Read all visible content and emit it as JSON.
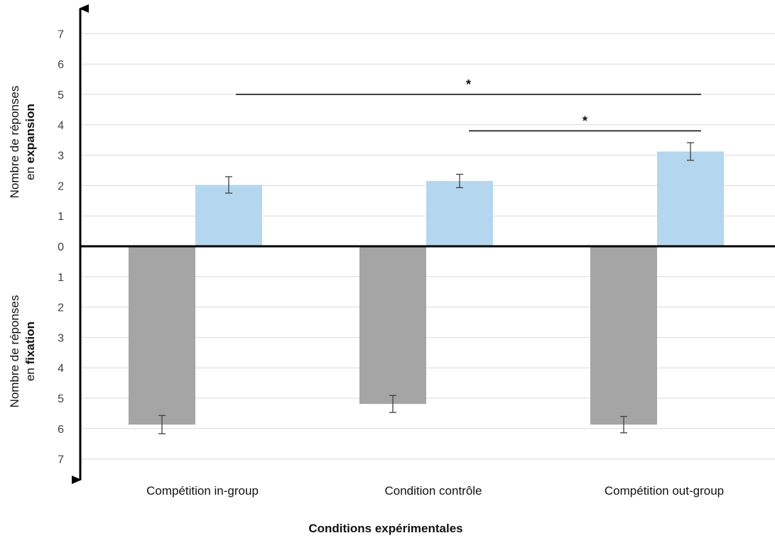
{
  "chart_data": {
    "type": "bar",
    "categories": [
      "Compétition in-group",
      "Condition contrôle",
      "Compétition out-group"
    ],
    "series": [
      {
        "name": "",
        "direction": "down",
        "color": "#a5a5a5",
        "values": [
          5.87,
          5.19,
          5.87
        ],
        "errors": [
          0.3,
          0.28,
          0.27
        ]
      },
      {
        "name": "",
        "direction": "up",
        "color": "#b4d6ee",
        "values": [
          2.02,
          2.15,
          3.12
        ],
        "errors": [
          0.27,
          0.22,
          0.29
        ]
      }
    ],
    "ytick_labels_upper": [
      "0",
      "1",
      "2",
      "3",
      "4",
      "5",
      "6",
      "7"
    ],
    "ytick_labels_lower": [
      "1",
      "2",
      "3",
      "4",
      "5",
      "6",
      "7"
    ],
    "ylim": [
      -7,
      7
    ],
    "grid": true,
    "xlabel": "Conditions expérimentales",
    "ylabel_upper": {
      "line1": "Nombre de réponses",
      "line2_prefix": "en ",
      "line2_bold": "expansion"
    },
    "ylabel_lower": {
      "line1": "Nombre de réponses",
      "line2_prefix": "en ",
      "line2_bold": "fixation"
    },
    "significance": [
      {
        "from_category": 0,
        "to_category": 2,
        "y": 5.0,
        "label": "*"
      },
      {
        "from_category": 1,
        "to_category": 2,
        "y": 3.8,
        "label": "*"
      }
    ]
  }
}
